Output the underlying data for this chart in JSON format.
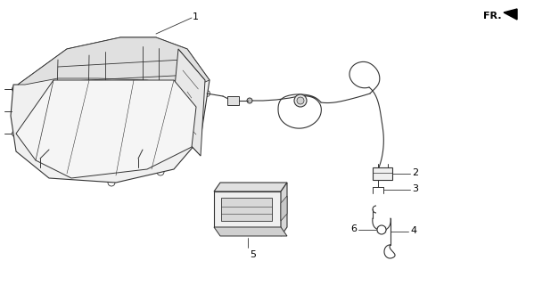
{
  "background_color": "#ffffff",
  "line_color": "#333333",
  "label_color": "#000000",
  "figsize": [
    6.27,
    3.2
  ],
  "dpi": 100,
  "fr_text": "FR.",
  "part_labels": [
    "1",
    "2",
    "3",
    "4",
    "5",
    "6"
  ]
}
